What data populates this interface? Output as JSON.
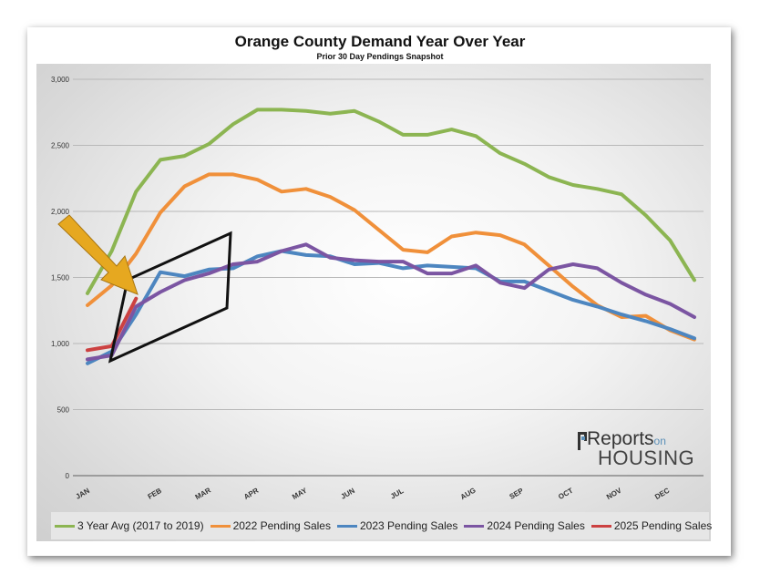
{
  "chart_data": {
    "type": "line",
    "title": "Orange County Demand Year Over Year",
    "subtitle": "Prior 30 Day Pendings Snapshot",
    "xlabel": "",
    "ylabel": "",
    "ylim": [
      0,
      3000
    ],
    "yticks": [
      "0",
      "500",
      "1,000",
      "1,500",
      "2,000",
      "2,500",
      "3,000"
    ],
    "month_labels": [
      "JAN",
      "FEB",
      "MAR",
      "APR",
      "MAY",
      "JUN",
      "JUL",
      "AUG",
      "SEP",
      "OCT",
      "NOV",
      "DEC"
    ],
    "grid": true,
    "legend_position": "bottom",
    "series": [
      {
        "name": "3 Year Avg (2017 to 2019)",
        "color": "#8cb552",
        "values": [
          1380,
          1700,
          2150,
          2390,
          2420,
          2510,
          2660,
          2770,
          2770,
          2760,
          2740,
          2760,
          2680,
          2580,
          2580,
          2620,
          2570,
          2440,
          2360,
          2260,
          2200,
          2170,
          2130,
          1970,
          1780,
          1480
        ]
      },
      {
        "name": "2022 Pending Sales",
        "color": "#f0903a",
        "values": [
          1290,
          1440,
          1680,
          1990,
          2190,
          2280,
          2280,
          2240,
          2150,
          2170,
          2110,
          2010,
          1860,
          1710,
          1690,
          1810,
          1840,
          1820,
          1750,
          1590,
          1430,
          1290,
          1200,
          1210,
          1100,
          1030
        ]
      },
      {
        "name": "2023 Pending Sales",
        "color": "#4d86c0",
        "values": [
          850,
          940,
          1220,
          1540,
          1510,
          1560,
          1570,
          1660,
          1700,
          1670,
          1660,
          1600,
          1610,
          1570,
          1590,
          1580,
          1570,
          1470,
          1470,
          1400,
          1330,
          1280,
          1220,
          1170,
          1110,
          1040
        ]
      },
      {
        "name": "2024 Pending Sales",
        "color": "#7b55a2",
        "values": [
          880,
          910,
          1280,
          1390,
          1480,
          1530,
          1600,
          1620,
          1700,
          1750,
          1650,
          1630,
          1620,
          1620,
          1530,
          1530,
          1590,
          1460,
          1420,
          1560,
          1600,
          1570,
          1460,
          1370,
          1300,
          1200
        ]
      },
      {
        "name": "2025 Pending Sales",
        "color": "#cc4141",
        "values": [
          950,
          980,
          1340
        ]
      }
    ]
  }
}
